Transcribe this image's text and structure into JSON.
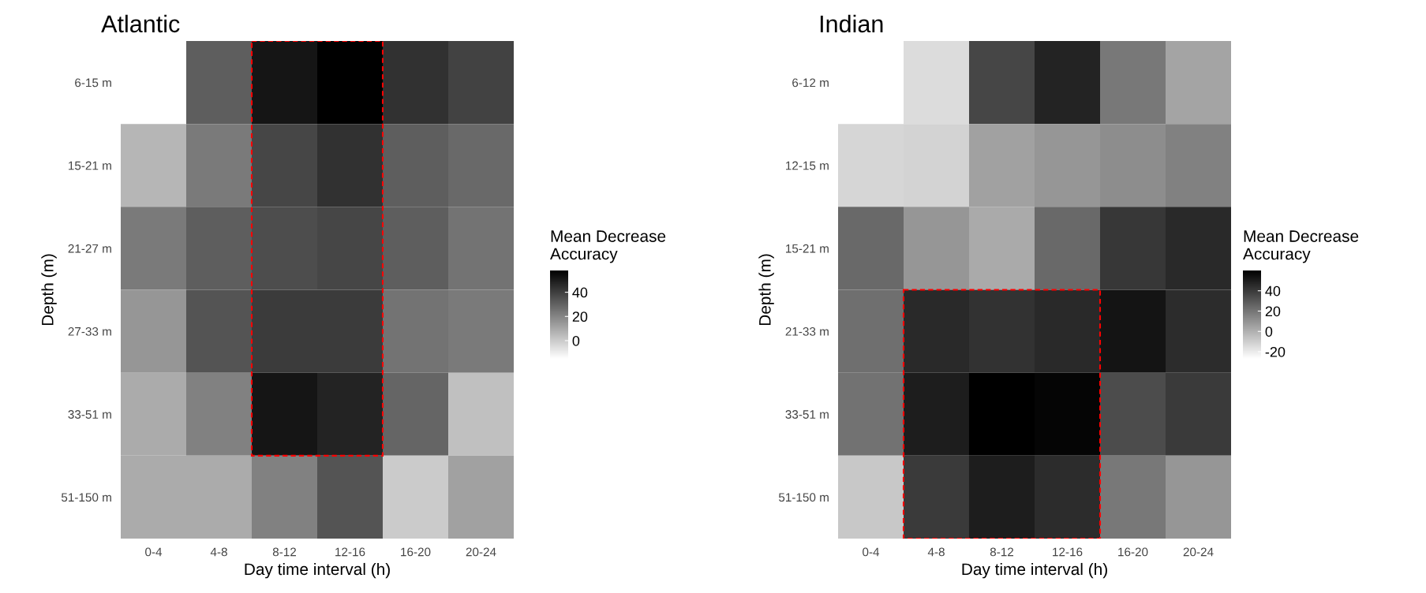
{
  "chart_data": [
    {
      "type": "heatmap",
      "title": "Atlantic",
      "xlabel": "Day time interval (h)",
      "ylabel": "Depth (m)",
      "clabel": "Mean Decrease\nAccuracy",
      "categories": [
        "0-4",
        "4-8",
        "8-12",
        "12-16",
        "16-20",
        "20-24"
      ],
      "y_categories": [
        "6-15 m",
        "15-21 m",
        "21-27 m",
        "27-33 m",
        "33-51 m",
        "51-150 m"
      ],
      "cells": [
        [
          null,
          31,
          52,
          58,
          44,
          39
        ],
        [
          6,
          23,
          38,
          44,
          31,
          28
        ],
        [
          23,
          31,
          36,
          38,
          31,
          25
        ],
        [
          15,
          34,
          41,
          41,
          25,
          23
        ],
        [
          9,
          21,
          52,
          48,
          29,
          3
        ],
        [
          9,
          9,
          21,
          34,
          0,
          12
        ]
      ],
      "clim": [
        -15,
        58
      ],
      "cticks": [
        0,
        20,
        40
      ],
      "grid": false
    },
    {
      "type": "heatmap",
      "title": "Indian",
      "xlabel": "Day time interval (h)",
      "ylabel": "Depth (m)",
      "clabel": "Mean Decrease\nAccuracy",
      "categories": [
        "0-4",
        "4-8",
        "8-12",
        "12-16",
        "16-20",
        "20-24"
      ],
      "y_categories": [
        "6-12 m",
        "12-15 m",
        "15-21 m",
        "21-33 m",
        "33-51 m",
        "51-150 m"
      ],
      "cells": [
        [
          null,
          -15,
          36,
          48,
          19,
          4
        ],
        [
          -13,
          -12,
          5,
          9,
          12,
          16
        ],
        [
          24,
          9,
          2,
          24,
          41,
          46
        ],
        [
          22,
          46,
          43,
          46,
          53,
          45
        ],
        [
          21,
          50,
          60,
          58,
          34,
          40
        ],
        [
          -8,
          40,
          50,
          45,
          19,
          9
        ]
      ],
      "clim": [
        -27,
        60
      ],
      "cticks": [
        -20,
        0,
        20,
        40
      ],
      "grid": false
    }
  ]
}
